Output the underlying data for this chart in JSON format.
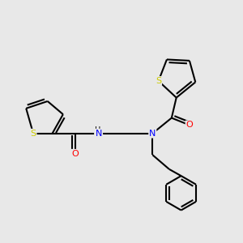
{
  "background_color": "#e8e8e8",
  "atom_colors": {
    "S": "#cccc00",
    "N": "#0000ff",
    "O": "#ff0000",
    "C": "#000000",
    "H": "#000000"
  },
  "bond_color": "#000000",
  "bond_width": 1.5,
  "figsize": [
    3.0,
    3.0
  ],
  "dpi": 100,
  "xlim": [
    0,
    10
  ],
  "ylim": [
    0,
    10
  ]
}
